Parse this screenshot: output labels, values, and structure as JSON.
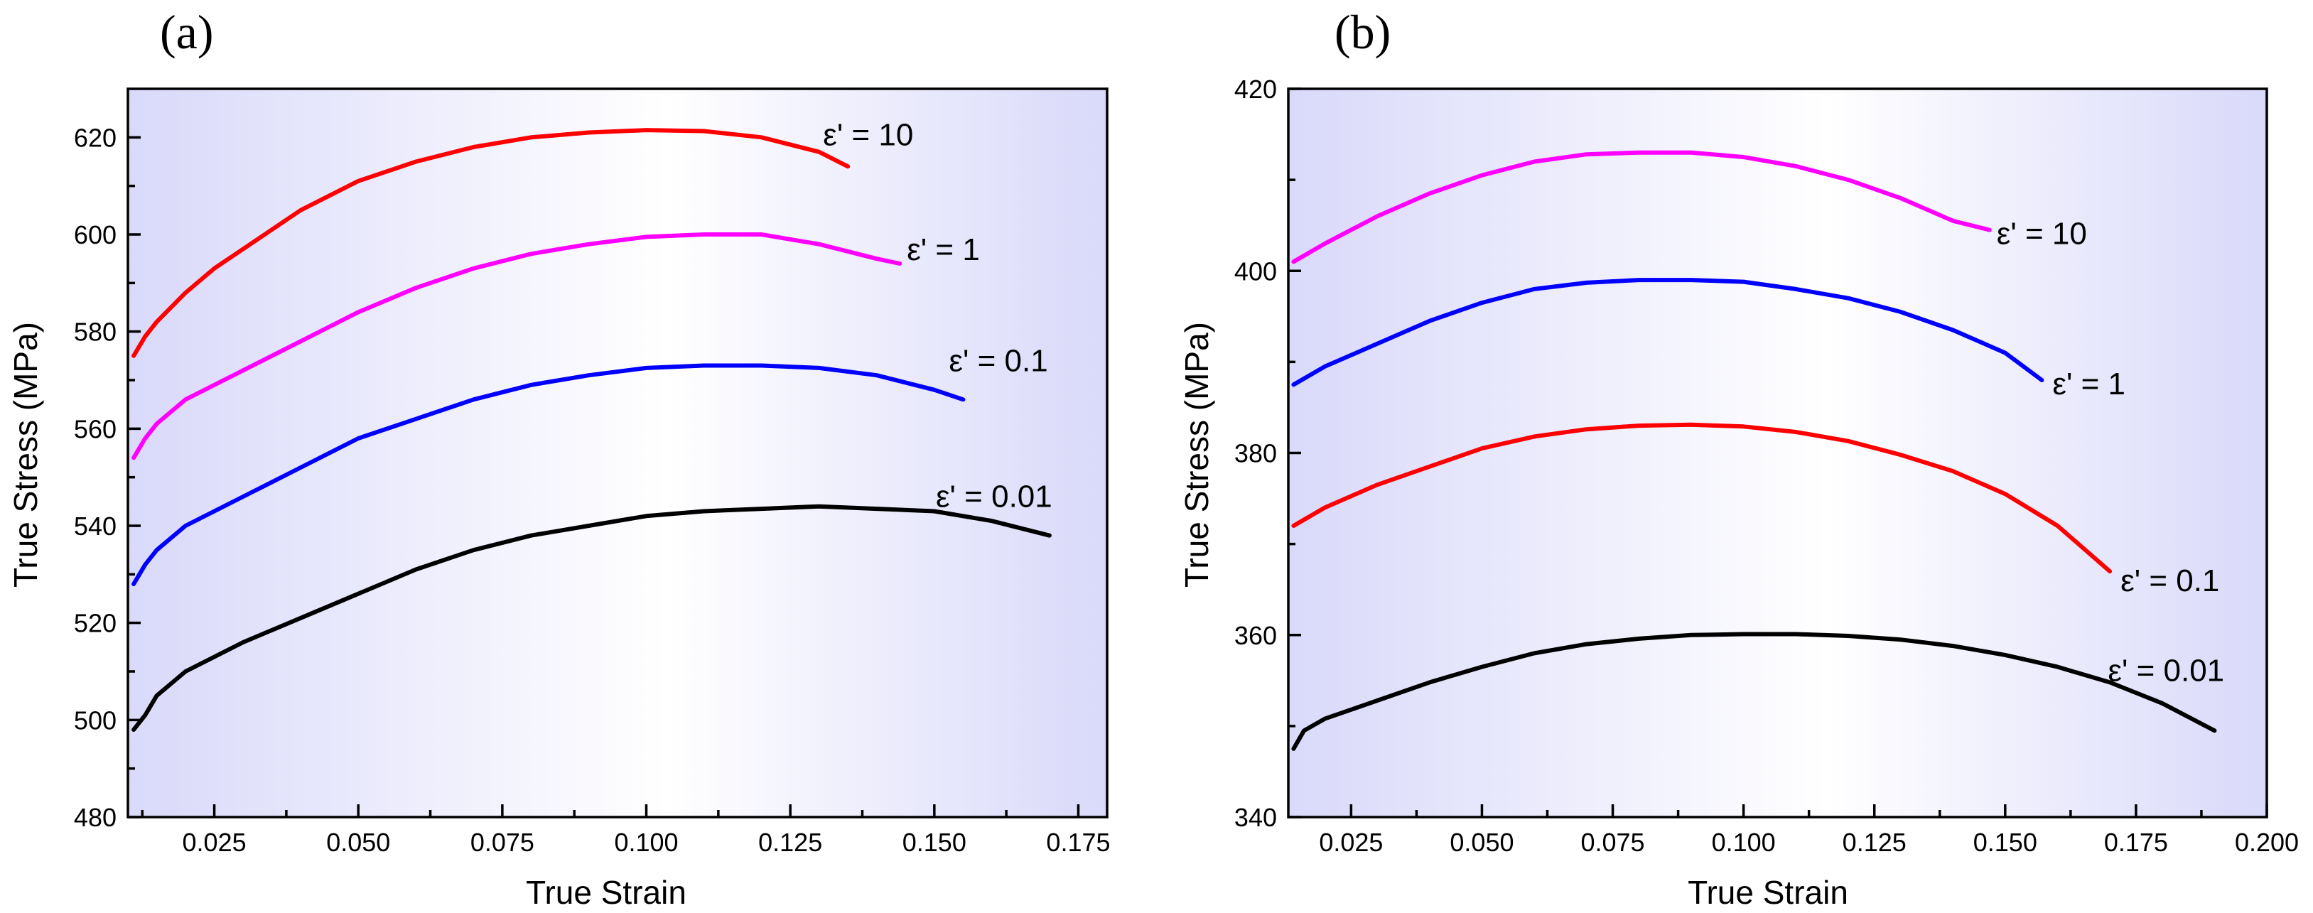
{
  "chart_data": [
    {
      "type": "line",
      "panel_label": "(a)",
      "title": "",
      "xlabel": "True Strain",
      "ylabel": "True Stress (MPa)",
      "xlim": [
        0.01,
        0.18
      ],
      "ylim": [
        480,
        630
      ],
      "xticks": [
        0.025,
        0.05,
        0.075,
        0.1,
        0.125,
        0.15,
        0.175
      ],
      "xtick_labels": [
        "0.025",
        "0.050",
        "0.075",
        "0.100",
        "0.125",
        "0.150",
        "0.175"
      ],
      "yticks": [
        480,
        500,
        520,
        540,
        560,
        580,
        600,
        620
      ],
      "ytick_labels": [
        "480",
        "500",
        "520",
        "540",
        "560",
        "580",
        "600",
        "620"
      ],
      "grid": false,
      "legend": "none",
      "background_gradient": [
        "#d9d9fa",
        "#ffffff",
        "#d9d9fa"
      ],
      "series": [
        {
          "label": "ε' = 10",
          "color": "#ff0000",
          "x": [
            0.011,
            0.013,
            0.015,
            0.02,
            0.025,
            0.03,
            0.04,
            0.05,
            0.06,
            0.07,
            0.08,
            0.09,
            0.1,
            0.11,
            0.12,
            0.13,
            0.135
          ],
          "y": [
            575,
            579,
            582,
            588,
            593,
            597,
            605,
            611,
            615,
            618,
            620,
            621,
            621.5,
            621.3,
            620,
            617,
            614
          ]
        },
        {
          "label": "ε' = 1",
          "color": "#ff00ff",
          "x": [
            0.011,
            0.013,
            0.015,
            0.02,
            0.03,
            0.04,
            0.05,
            0.06,
            0.07,
            0.08,
            0.09,
            0.1,
            0.11,
            0.12,
            0.13,
            0.14,
            0.144
          ],
          "y": [
            554,
            558,
            561,
            566,
            572,
            578,
            584,
            589,
            593,
            596,
            598,
            599.5,
            600,
            600,
            598,
            595,
            594
          ]
        },
        {
          "label": "ε' = 0.1",
          "color": "#0000ff",
          "x": [
            0.011,
            0.013,
            0.015,
            0.02,
            0.03,
            0.04,
            0.05,
            0.06,
            0.07,
            0.08,
            0.09,
            0.1,
            0.11,
            0.12,
            0.13,
            0.14,
            0.15,
            0.155
          ],
          "y": [
            528,
            532,
            535,
            540,
            546,
            552,
            558,
            562,
            566,
            569,
            571,
            572.5,
            573,
            573,
            572.5,
            571,
            568,
            566
          ]
        },
        {
          "label": "ε' = 0.01",
          "color": "#000000",
          "x": [
            0.011,
            0.013,
            0.015,
            0.02,
            0.03,
            0.04,
            0.05,
            0.06,
            0.07,
            0.08,
            0.09,
            0.1,
            0.11,
            0.12,
            0.13,
            0.14,
            0.15,
            0.16,
            0.17
          ],
          "y": [
            498,
            501,
            505,
            510,
            516,
            521,
            526,
            531,
            535,
            538,
            540,
            542,
            543,
            543.5,
            544,
            543.5,
            543,
            541,
            538
          ]
        }
      ]
    },
    {
      "type": "line",
      "panel_label": "(b)",
      "title": "",
      "xlabel": "True Strain",
      "ylabel": "True Stress (MPa)",
      "xlim": [
        0.013,
        0.2
      ],
      "ylim": [
        340,
        420
      ],
      "xticks": [
        0.025,
        0.05,
        0.075,
        0.1,
        0.125,
        0.15,
        0.175,
        0.2
      ],
      "xtick_labels": [
        "0.025",
        "0.050",
        "0.075",
        "0.100",
        "0.125",
        "0.150",
        "0.175",
        "0.200"
      ],
      "yticks": [
        340,
        360,
        380,
        400,
        420
      ],
      "ytick_labels": [
        "340",
        "360",
        "380",
        "400",
        "420"
      ],
      "grid": false,
      "legend": "none",
      "background_gradient": [
        "#d9d9fa",
        "#ffffff",
        "#d9d9fa"
      ],
      "series": [
        {
          "label": "ε' = 10",
          "color": "#ff00ff",
          "x": [
            0.014,
            0.02,
            0.03,
            0.04,
            0.05,
            0.06,
            0.07,
            0.08,
            0.09,
            0.1,
            0.11,
            0.12,
            0.13,
            0.14,
            0.147
          ],
          "y": [
            401,
            403,
            406,
            408.5,
            410.5,
            412,
            412.8,
            413,
            413,
            412.5,
            411.5,
            410,
            408,
            405.5,
            404.5
          ]
        },
        {
          "label": "ε' = 1",
          "color": "#0000ff",
          "x": [
            0.014,
            0.02,
            0.03,
            0.04,
            0.05,
            0.06,
            0.07,
            0.08,
            0.09,
            0.1,
            0.11,
            0.12,
            0.13,
            0.14,
            0.15,
            0.157
          ],
          "y": [
            387.5,
            389.5,
            392,
            394.5,
            396.5,
            398,
            398.7,
            399,
            399,
            398.8,
            398,
            397,
            395.5,
            393.5,
            391,
            388
          ]
        },
        {
          "label": "ε' = 0.1",
          "color": "#ff0000",
          "x": [
            0.014,
            0.02,
            0.03,
            0.04,
            0.05,
            0.06,
            0.07,
            0.08,
            0.09,
            0.1,
            0.11,
            0.12,
            0.13,
            0.14,
            0.15,
            0.16,
            0.17
          ],
          "y": [
            372,
            374,
            376.5,
            378.5,
            380.5,
            381.8,
            382.6,
            383,
            383.1,
            382.9,
            382.3,
            381.3,
            379.8,
            378,
            375.5,
            372,
            367
          ]
        },
        {
          "label": "ε' = 0.01",
          "color": "#000000",
          "x": [
            0.014,
            0.016,
            0.02,
            0.03,
            0.04,
            0.05,
            0.06,
            0.07,
            0.08,
            0.09,
            0.1,
            0.11,
            0.12,
            0.13,
            0.14,
            0.15,
            0.16,
            0.17,
            0.18,
            0.19
          ],
          "y": [
            347.5,
            349.5,
            350.8,
            352.8,
            354.8,
            356.5,
            358,
            359,
            359.6,
            360,
            360.1,
            360.1,
            359.9,
            359.5,
            358.8,
            357.8,
            356.5,
            354.8,
            352.5,
            349.5
          ]
        }
      ]
    }
  ]
}
